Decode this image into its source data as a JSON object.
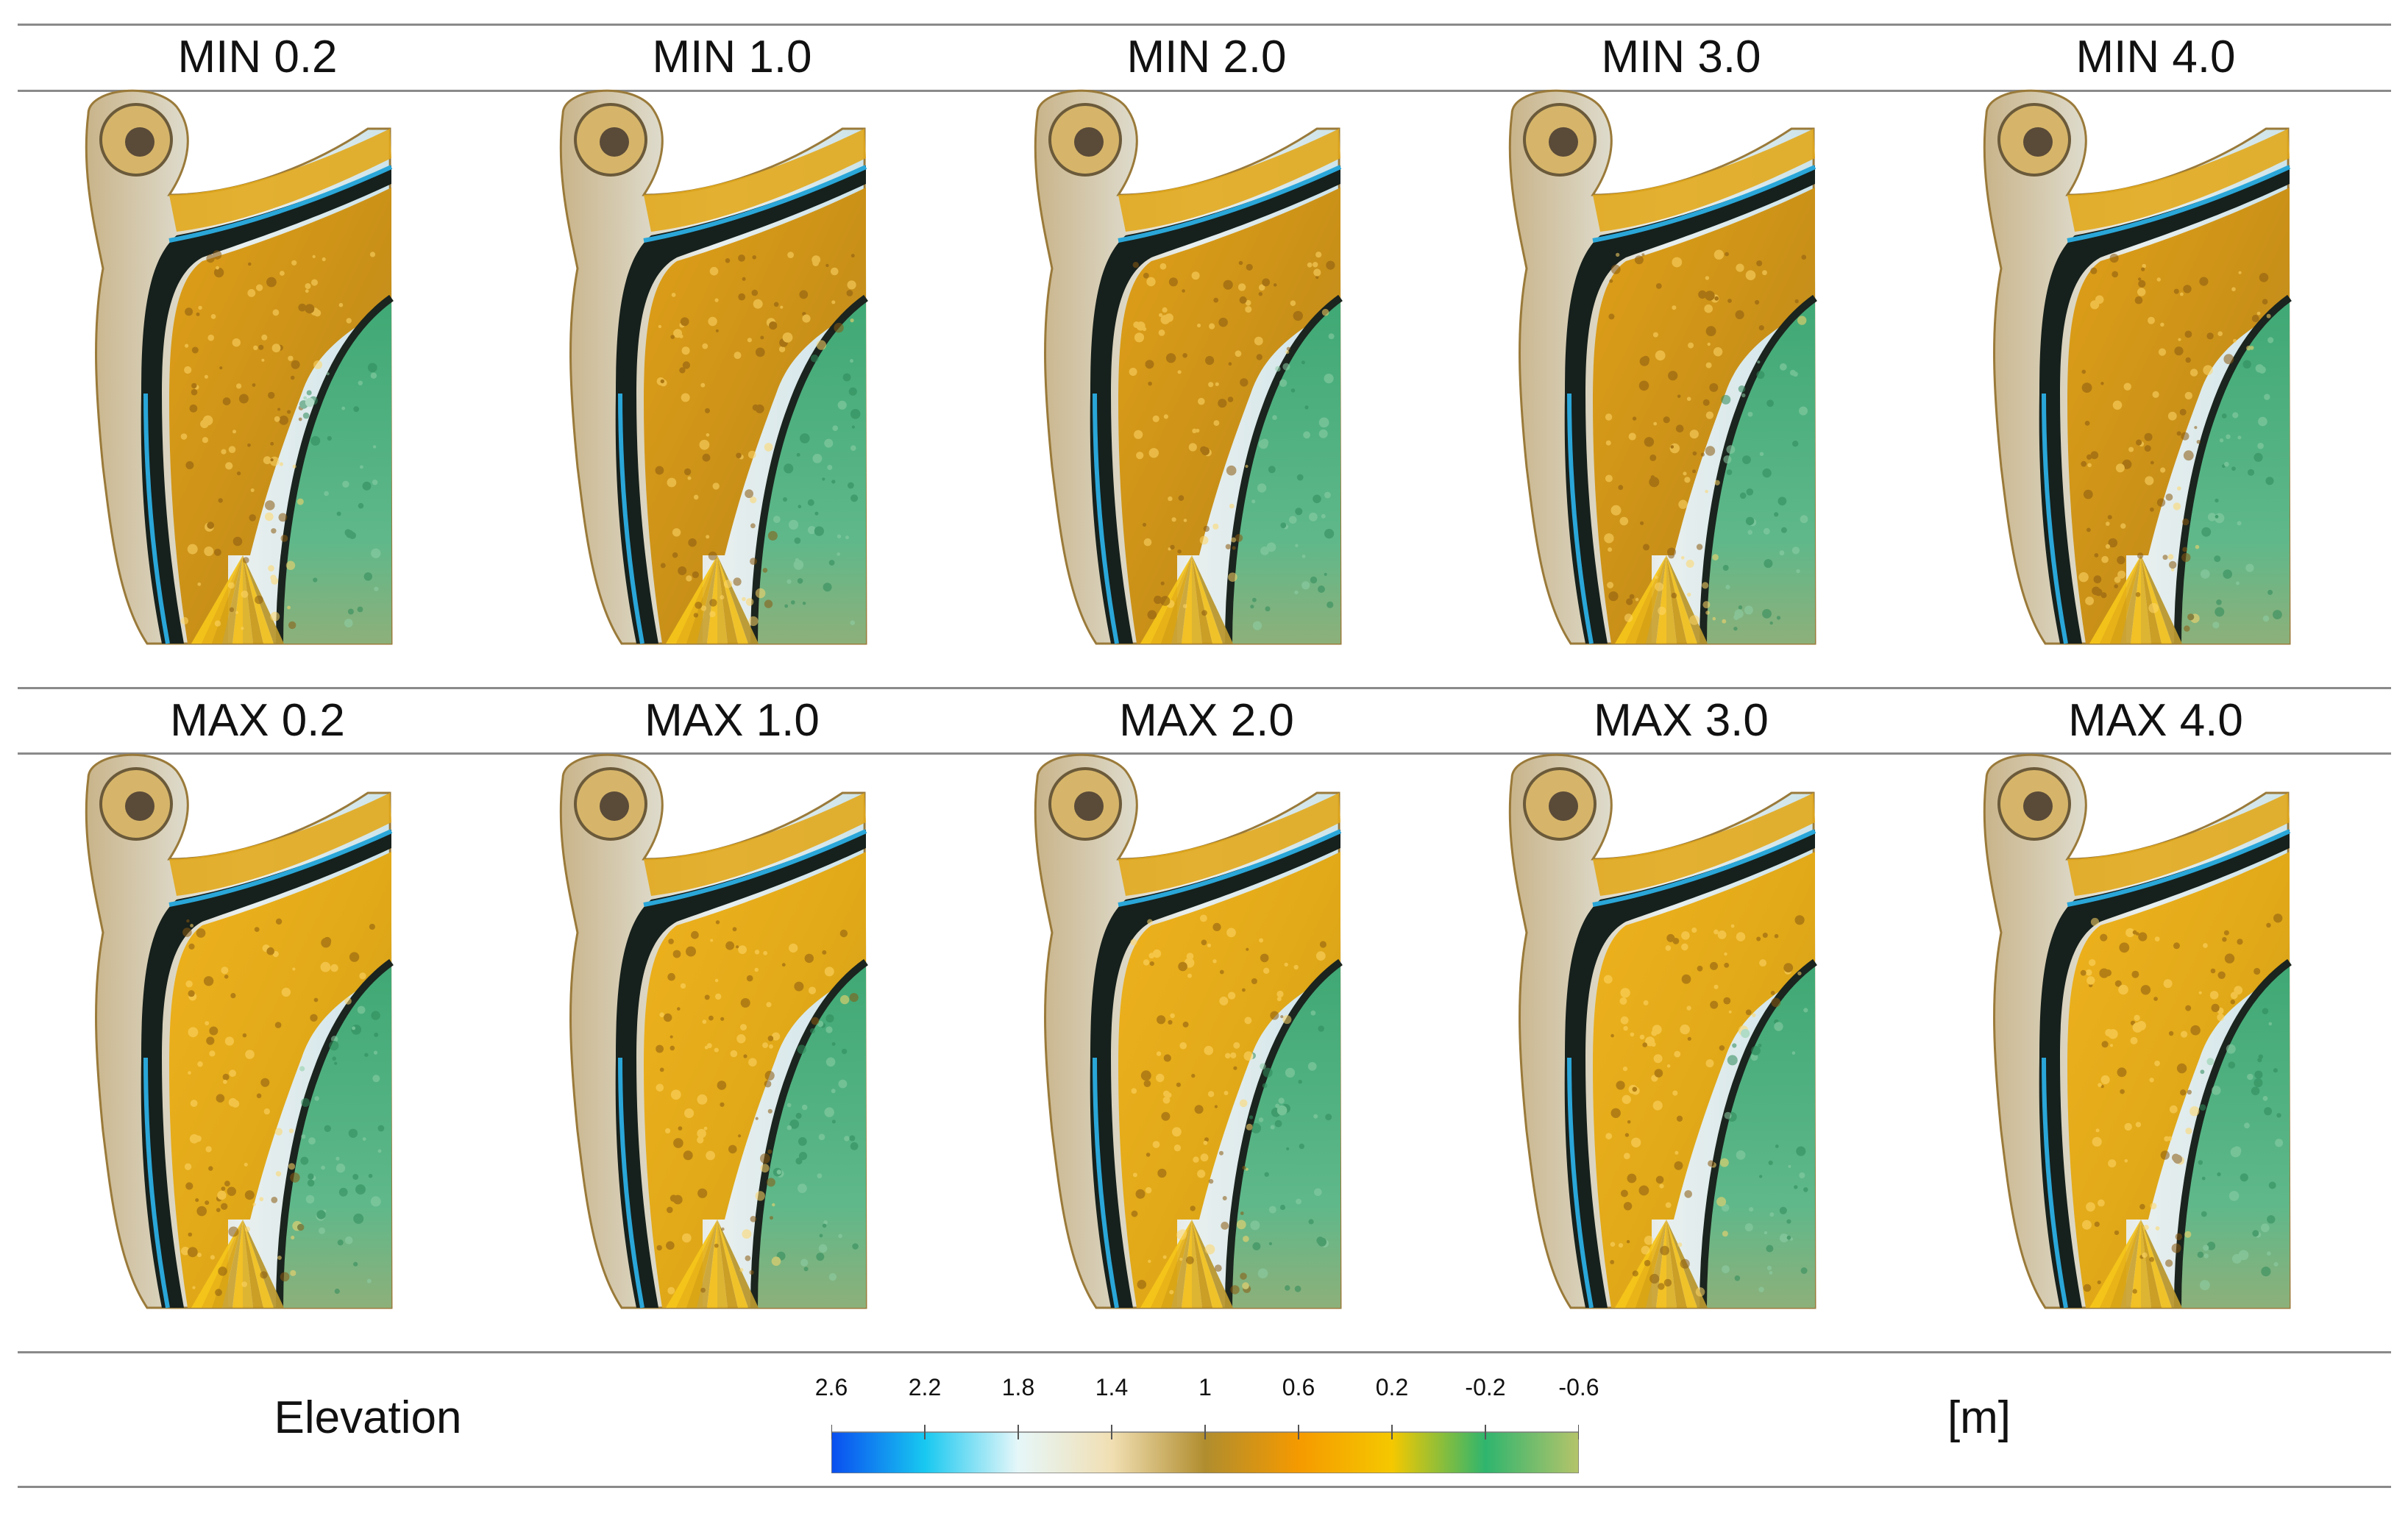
{
  "rows": [
    {
      "panels": [
        {
          "label": "MIN 0.2"
        },
        {
          "label": "MIN 1.0"
        },
        {
          "label": "MIN 2.0"
        },
        {
          "label": "MIN 3.0"
        },
        {
          "label": "MIN 4.0"
        }
      ]
    },
    {
      "panels": [
        {
          "label": "MAX 0.2"
        },
        {
          "label": "MAX 1.0"
        },
        {
          "label": "MAX 2.0"
        },
        {
          "label": "MAX 3.0"
        },
        {
          "label": "MAX 4.0"
        }
      ]
    }
  ],
  "legend": {
    "title": "Elevation",
    "unit": "[m]",
    "ticks": [
      "2.6",
      "2.2",
      "1.8",
      "1.4",
      "1",
      "0.6",
      "0.2",
      "-0.2",
      "-0.6"
    ],
    "colors": [
      "#0a4ef0",
      "#18c8f0",
      "#e6f7f9",
      "#f1dfb3",
      "#b08d2e",
      "#f59a00",
      "#f5c800",
      "#2fb56e",
      "#b5c46a"
    ]
  }
}
